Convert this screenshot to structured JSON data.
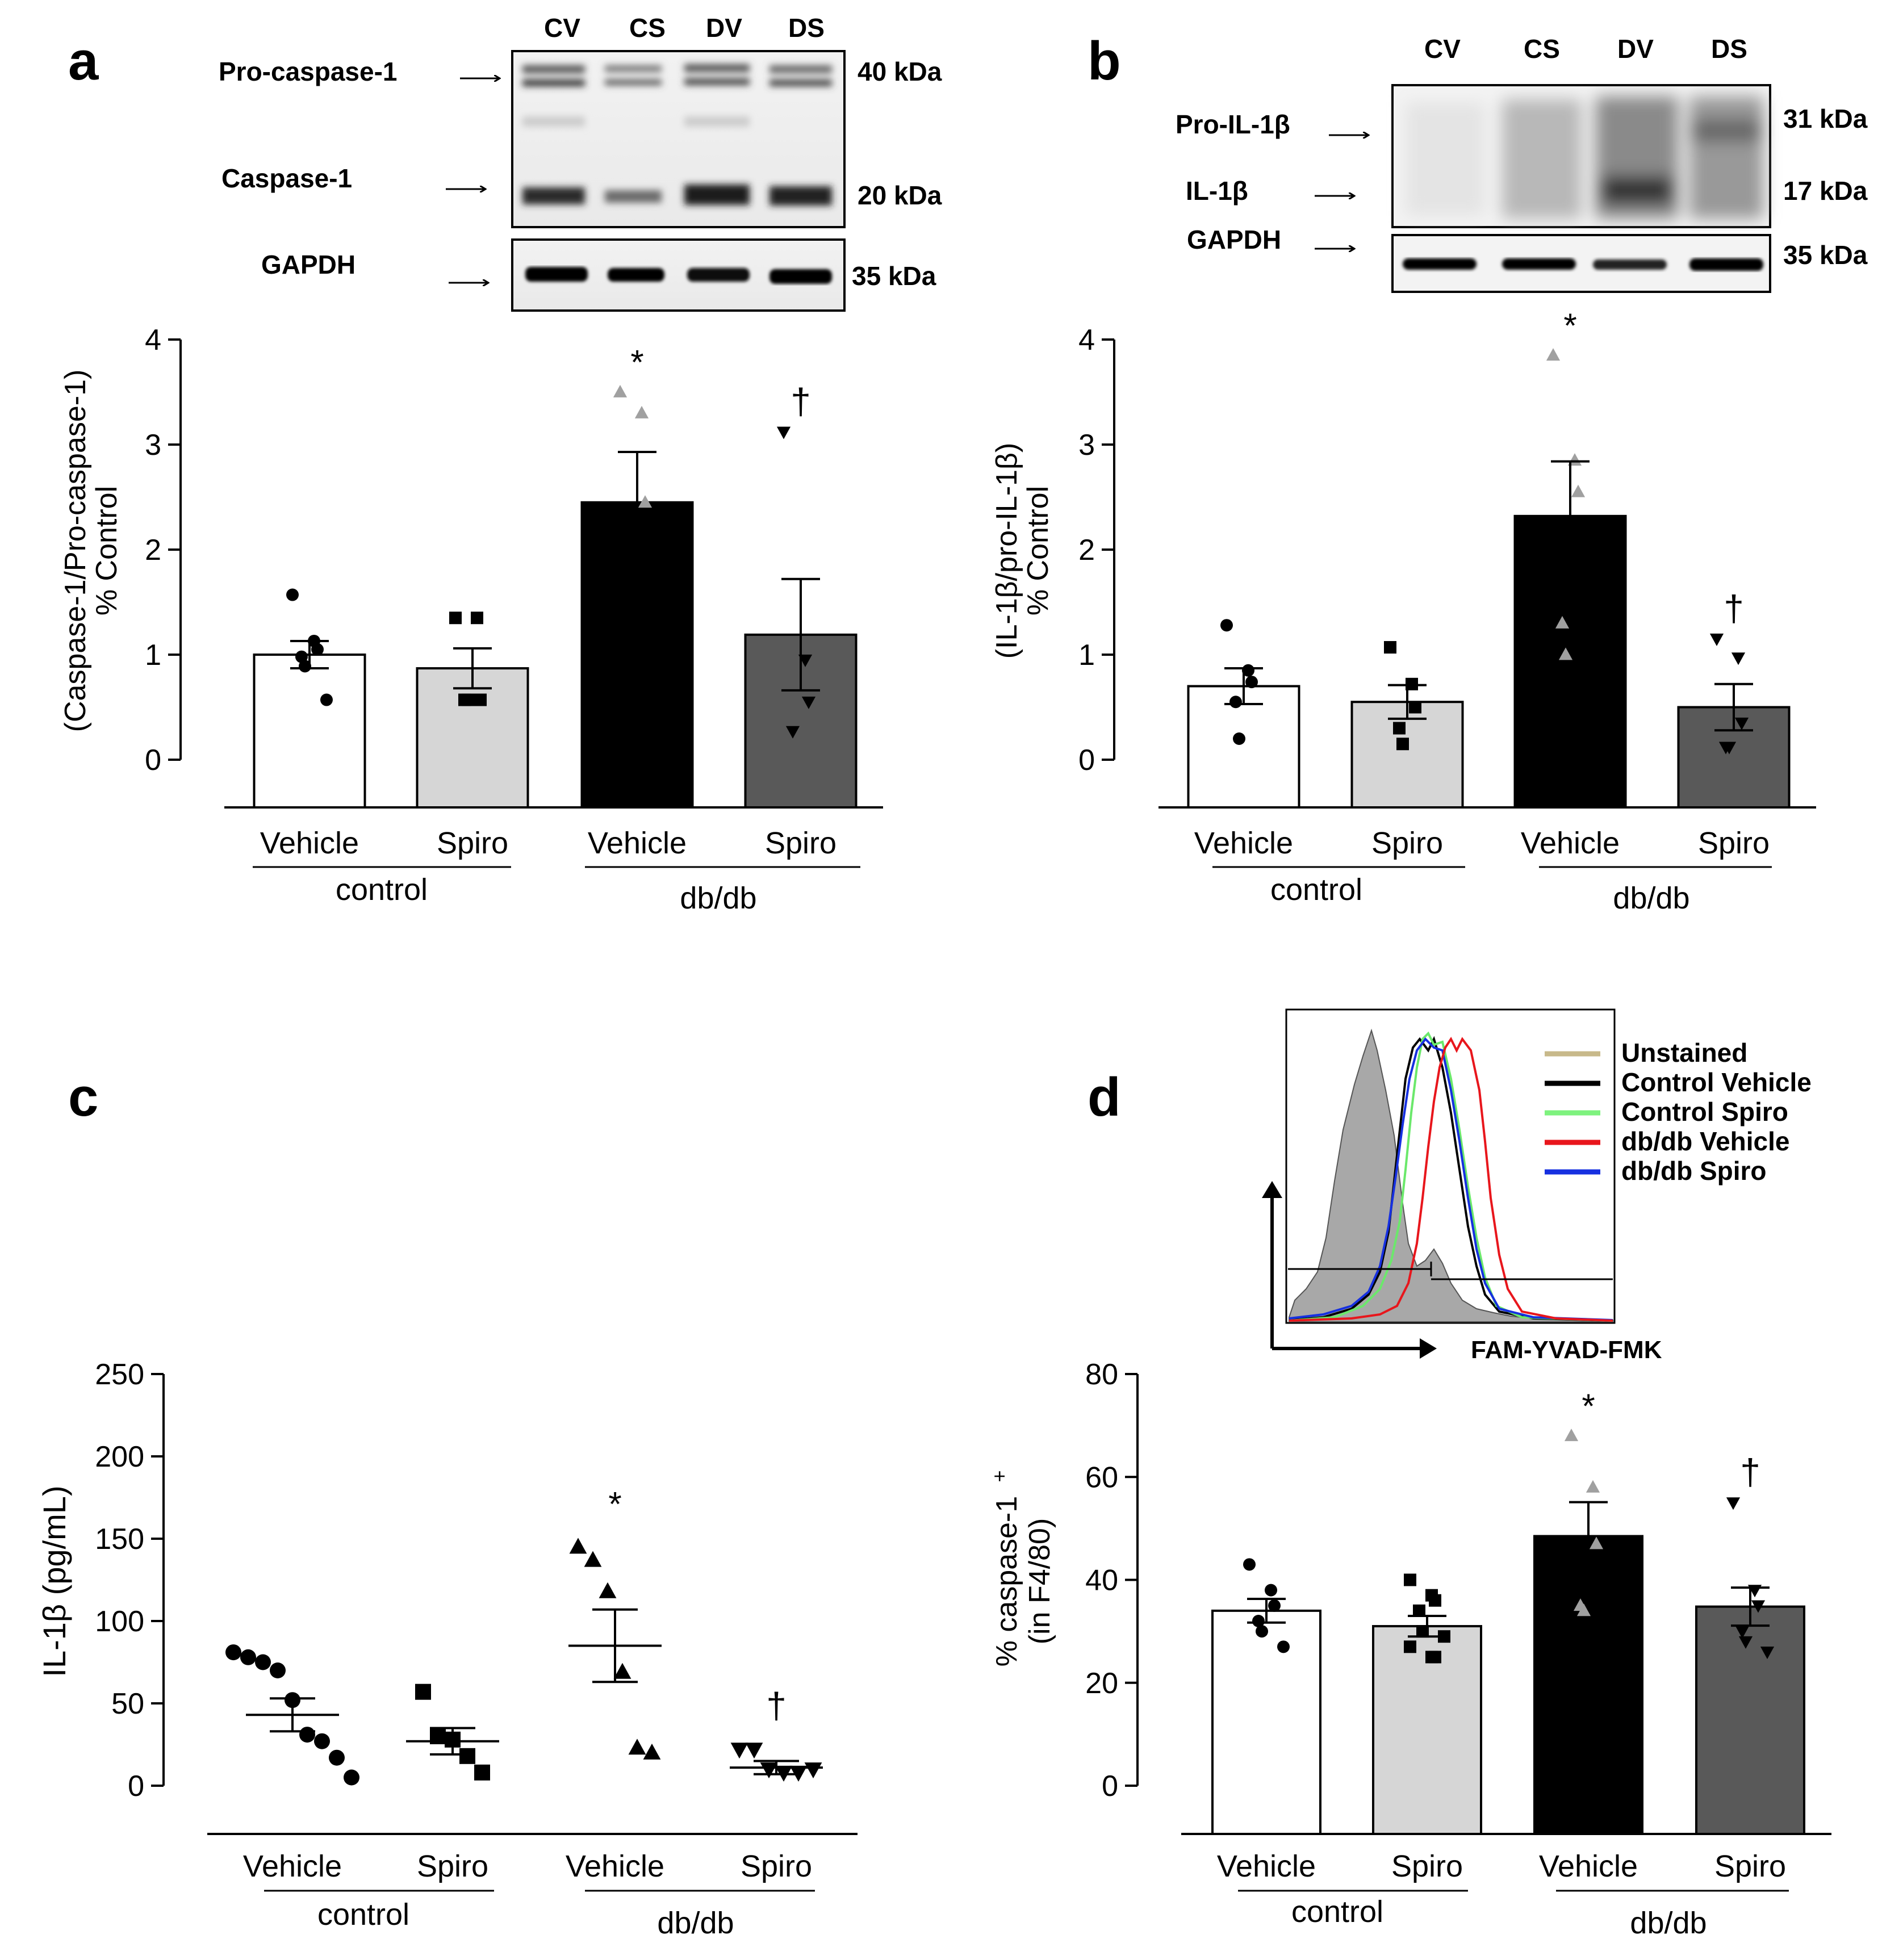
{
  "panels": {
    "a": {
      "letter": "a",
      "blot": {
        "lanes": [
          "CV",
          "CS",
          "DV",
          "DS"
        ],
        "rows": [
          {
            "label": "Pro-caspase-1",
            "kda": "40 kDa"
          },
          {
            "label": "Caspase-1",
            "kda": "20 kDa"
          },
          {
            "label": "GAPDH",
            "kda": "35 kDa"
          }
        ]
      }
    },
    "b": {
      "letter": "b",
      "blot": {
        "lanes": [
          "CV",
          "CS",
          "DV",
          "DS"
        ],
        "rows": [
          {
            "label": "Pro-IL-1β",
            "kda": "31 kDa"
          },
          {
            "label": "IL-1β",
            "kda": "17 kDa"
          },
          {
            "label": "GAPDH",
            "kda": "35 kDa"
          }
        ]
      }
    },
    "c": {
      "letter": "c"
    },
    "d": {
      "letter": "d",
      "histogram": {
        "xlabel": "FAM-YVAD-FMK",
        "legend": [
          {
            "label": "Unstained",
            "color": "#c8b98a"
          },
          {
            "label": "Control Vehicle",
            "color": "#000000"
          },
          {
            "label": "Control Spiro",
            "color": "#7ef27e"
          },
          {
            "label": "db/db Vehicle",
            "color": "#e8161c"
          },
          {
            "label": "db/db Spiro",
            "color": "#1630e0"
          }
        ]
      }
    }
  },
  "chart_data": [
    {
      "id": "a",
      "type": "bar",
      "ylabel_line1": "(Caspase-1/Pro-caspase-1)",
      "ylabel_line2": "% Control",
      "ylim": [
        0,
        4
      ],
      "yticks": [
        "0",
        "1",
        "2",
        "3",
        "4"
      ],
      "categories": [
        "Vehicle",
        "Spiro",
        "Vehicle",
        "Spiro"
      ],
      "groups": [
        "control",
        "db/db"
      ],
      "values": [
        1.0,
        0.87,
        2.45,
        1.19
      ],
      "sem": [
        0.13,
        0.19,
        0.48,
        0.53
      ],
      "points": [
        [
          1.57,
          1.13,
          1.05,
          0.98,
          0.89,
          0.57
        ],
        [
          1.35,
          1.35,
          0.57,
          0.57,
          0.57
        ],
        [
          3.5,
          3.3,
          2.45,
          2.25,
          0.75
        ],
        [
          3.12,
          0.95,
          0.55,
          0.27
        ]
      ],
      "markers": [
        "circle",
        "square",
        "triangle",
        "triangle-down"
      ],
      "bar_colors": [
        "#ffffff",
        "#d6d6d6",
        "#000000",
        "#595959"
      ],
      "point_colors": [
        [
          "#000"
        ],
        [
          "#000"
        ],
        [
          "#a0a0a0",
          "#a0a0a0",
          "#a0a0a0",
          "#000",
          "#000"
        ],
        [
          "#000"
        ]
      ],
      "annotations": [
        "",
        "",
        "*",
        "†"
      ]
    },
    {
      "id": "b",
      "type": "bar",
      "ylabel_line1": "(IL-1β/pro-IL-1β)",
      "ylabel_line2": "% Control",
      "ylim": [
        0,
        4
      ],
      "yticks": [
        "0",
        "1",
        "2",
        "3",
        "4"
      ],
      "categories": [
        "Vehicle",
        "Spiro",
        "Vehicle",
        "Spiro"
      ],
      "groups": [
        "control",
        "db/db"
      ],
      "values": [
        0.7,
        0.55,
        2.32,
        0.5
      ],
      "sem": [
        0.17,
        0.16,
        0.52,
        0.22
      ],
      "points": [
        [
          1.28,
          0.85,
          0.74,
          0.55,
          0.2
        ],
        [
          1.07,
          0.72,
          0.5,
          0.3,
          0.15
        ],
        [
          3.85,
          2.85,
          2.55,
          1.3,
          1.0
        ],
        [
          1.15,
          0.97,
          0.35,
          0.12,
          0.12
        ]
      ],
      "markers": [
        "circle",
        "square",
        "triangle",
        "triangle-down"
      ],
      "bar_colors": [
        "#ffffff",
        "#d6d6d6",
        "#000000",
        "#595959"
      ],
      "point_colors": [
        [
          "#000"
        ],
        [
          "#000"
        ],
        [
          "#a0a0a0",
          "#a0a0a0",
          "#a0a0a0",
          "#a0a0a0",
          "#a0a0a0"
        ],
        [
          "#000"
        ]
      ],
      "annotations": [
        "",
        "",
        "*",
        "†"
      ]
    },
    {
      "id": "c",
      "type": "scatter",
      "ylabel": "IL-1β (pg/mL)",
      "ylim": [
        0,
        250
      ],
      "yticks": [
        "0",
        "50",
        "100",
        "150",
        "200",
        "250"
      ],
      "categories": [
        "Vehicle",
        "Spiro",
        "Vehicle",
        "Spiro"
      ],
      "groups": [
        "control",
        "db/db"
      ],
      "means": [
        43,
        27,
        85,
        11
      ],
      "sem": [
        10,
        8,
        22,
        4
      ],
      "points": [
        [
          81,
          78,
          75,
          70,
          52,
          31,
          27,
          17,
          5
        ],
        [
          57,
          30,
          28,
          18,
          8
        ],
        [
          145,
          137,
          118,
          69,
          23,
          20
        ],
        [
          22,
          22,
          10,
          8,
          8,
          10
        ]
      ],
      "markers": [
        "circle",
        "square",
        "triangle",
        "triangle-down"
      ],
      "annotations": [
        "",
        "",
        "*",
        "†"
      ]
    },
    {
      "id": "d",
      "type": "bar",
      "ylabel_line1": "% caspase-1",
      "ylabel_sup": "+",
      "ylabel_line2": "(in F4/80)",
      "ylim": [
        0,
        80
      ],
      "yticks": [
        "0",
        "20",
        "40",
        "60",
        "80"
      ],
      "categories": [
        "Vehicle",
        "Spiro",
        "Vehicle",
        "Spiro"
      ],
      "groups": [
        "control",
        "db/db"
      ],
      "values": [
        34,
        31,
        48.5,
        34.8
      ],
      "sem": [
        2.3,
        2.0,
        6.6,
        3.7
      ],
      "points": [
        [
          43,
          38,
          35,
          32,
          30,
          27
        ],
        [
          40,
          37,
          36,
          34,
          30,
          29,
          27,
          25,
          25
        ],
        [
          68,
          58,
          47,
          35,
          34
        ],
        [
          55,
          38,
          35,
          30,
          28,
          26
        ]
      ],
      "markers": [
        "circle",
        "square",
        "triangle",
        "triangle-down"
      ],
      "bar_colors": [
        "#ffffff",
        "#d6d6d6",
        "#000000",
        "#595959"
      ],
      "point_colors": [
        [
          "#000"
        ],
        [
          "#000"
        ],
        [
          "#a0a0a0",
          "#a0a0a0",
          "#a0a0a0",
          "#a0a0a0",
          "#a0a0a0"
        ],
        [
          "#000"
        ]
      ],
      "annotations": [
        "",
        "",
        "*",
        "†"
      ]
    }
  ]
}
